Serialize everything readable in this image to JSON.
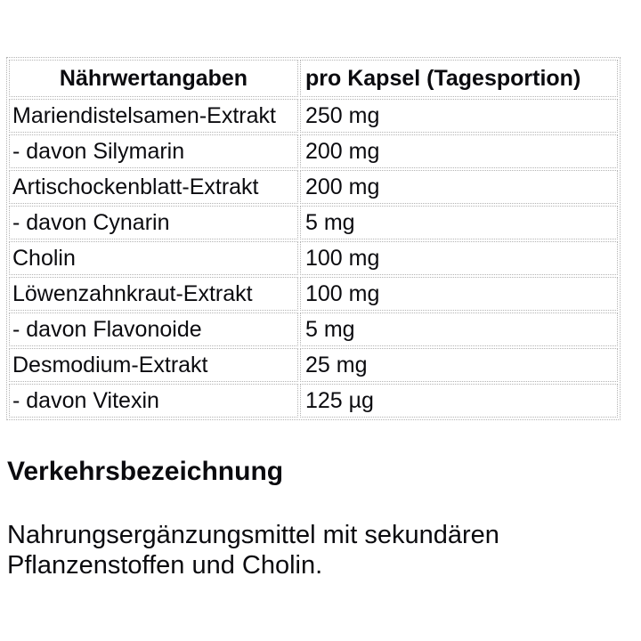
{
  "table": {
    "headers": [
      "Nährwertangaben",
      "pro Kapsel (Tagesportion)"
    ],
    "rows": [
      {
        "label": "Mariendistelsamen-Extrakt",
        "value": "250 mg"
      },
      {
        "label": "- davon Silymarin",
        "value": "200 mg"
      },
      {
        "label": "Artischockenblatt-Extrakt",
        "value": "200 mg"
      },
      {
        "label": "- davon Cynarin",
        "value": "5 mg"
      },
      {
        "label": "Cholin",
        "value": "100 mg"
      },
      {
        "label": "Löwenzahnkraut-Extrakt",
        "value": "100 mg"
      },
      {
        "label": "- davon Flavonoide",
        "value": "5 mg"
      },
      {
        "label": "Desmodium-Extrakt",
        "value": "25 mg"
      },
      {
        "label": "- davon Vitexin",
        "value": "125 µg"
      }
    ]
  },
  "sections": {
    "heading": "Verkehrsbezeichnung",
    "body": "Nahrungsergänzungsmittel mit sekundären Pflanzenstoffen und Cholin."
  },
  "colors": {
    "border": "#b3b3b3",
    "text": "#0b0b0f",
    "background": "#ffffff"
  }
}
